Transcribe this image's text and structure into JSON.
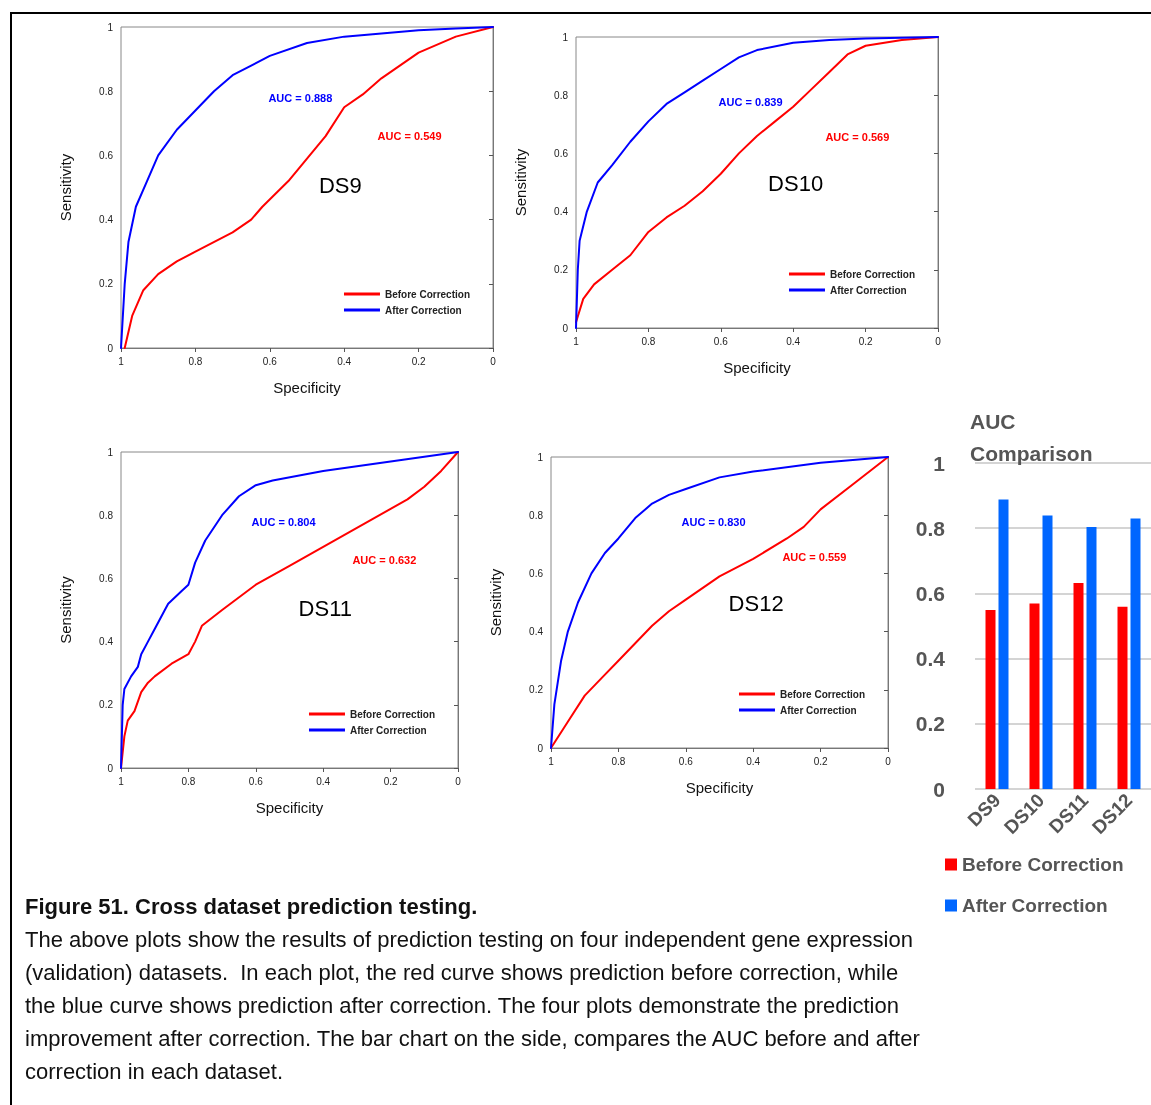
{
  "chart_data": [
    {
      "type": "line",
      "title": "DS9",
      "xlabel": "Specificity",
      "ylabel": "Sensitivity",
      "xlim": [
        1,
        0
      ],
      "ylim": [
        0,
        1
      ],
      "xticks": [
        1,
        0.8,
        0.6,
        0.4,
        0.2,
        0
      ],
      "yticks": [
        0,
        0.2,
        0.4,
        0.6,
        0.8,
        1
      ],
      "grid": false,
      "legend": "bottom right",
      "marker": "none",
      "line_style": "solid",
      "series": [
        {
          "name": "Before Correction",
          "color": "#ff0000",
          "x": [
            0.99,
            0.97,
            0.94,
            0.9,
            0.85,
            0.8,
            0.7,
            0.65,
            0.62,
            0.55,
            0.5,
            0.45,
            0.4,
            0.35,
            0.3,
            0.2,
            0.1,
            0
          ],
          "values": [
            0,
            0.1,
            0.18,
            0.23,
            0.27,
            0.3,
            0.36,
            0.4,
            0.44,
            0.52,
            0.59,
            0.66,
            0.75,
            0.79,
            0.84,
            0.92,
            0.97,
            1
          ]
        },
        {
          "name": "After Correction",
          "color": "#0000ff",
          "x": [
            1,
            0.99,
            0.98,
            0.96,
            0.93,
            0.9,
            0.85,
            0.8,
            0.75,
            0.7,
            0.65,
            0.6,
            0.5,
            0.4,
            0.3,
            0.2,
            0.1,
            0
          ],
          "values": [
            0,
            0.2,
            0.33,
            0.44,
            0.52,
            0.6,
            0.68,
            0.74,
            0.8,
            0.85,
            0.88,
            0.91,
            0.95,
            0.97,
            0.98,
            0.99,
            0.995,
            1
          ]
        }
      ],
      "annotations": [
        "AUC = 0.549",
        "AUC = 0.888"
      ]
    },
    {
      "type": "line",
      "title": "DS10",
      "xlabel": "Specificity",
      "ylabel": "Sensitivity",
      "xlim": [
        1,
        0
      ],
      "ylim": [
        0,
        1
      ],
      "xticks": [
        1,
        0.8,
        0.6,
        0.4,
        0.2,
        0
      ],
      "yticks": [
        0,
        0.2,
        0.4,
        0.6,
        0.8,
        1
      ],
      "grid": false,
      "legend": "bottom right",
      "marker": "none",
      "line_style": "solid",
      "series": [
        {
          "name": "Before Correction",
          "color": "#ff0000",
          "x": [
            1,
            0.98,
            0.95,
            0.9,
            0.85,
            0.8,
            0.75,
            0.7,
            0.65,
            0.6,
            0.55,
            0.5,
            0.45,
            0.4,
            0.35,
            0.3,
            0.25,
            0.2,
            0.1,
            0
          ],
          "values": [
            0.02,
            0.1,
            0.15,
            0.2,
            0.25,
            0.33,
            0.38,
            0.42,
            0.47,
            0.53,
            0.6,
            0.66,
            0.71,
            0.76,
            0.82,
            0.88,
            0.94,
            0.97,
            0.99,
            1
          ]
        },
        {
          "name": "After Correction",
          "color": "#0000ff",
          "x": [
            1,
            0.995,
            0.99,
            0.97,
            0.94,
            0.9,
            0.85,
            0.8,
            0.75,
            0.7,
            0.65,
            0.6,
            0.55,
            0.5,
            0.4,
            0.3,
            0.2,
            0
          ],
          "values": [
            0,
            0.2,
            0.3,
            0.4,
            0.5,
            0.56,
            0.64,
            0.71,
            0.77,
            0.81,
            0.85,
            0.89,
            0.93,
            0.955,
            0.98,
            0.99,
            0.995,
            1
          ]
        }
      ],
      "annotations": [
        "AUC = 0.569",
        "AUC = 0.839"
      ]
    },
    {
      "type": "line",
      "title": "DS11",
      "xlabel": "Specificity",
      "ylabel": "Sensitivity",
      "xlim": [
        1,
        0
      ],
      "ylim": [
        0,
        1
      ],
      "xticks": [
        1,
        0.8,
        0.6,
        0.4,
        0.2,
        0
      ],
      "yticks": [
        0,
        0.2,
        0.4,
        0.6,
        0.8,
        1
      ],
      "grid": false,
      "legend": "bottom right",
      "marker": "none",
      "line_style": "solid",
      "series": [
        {
          "name": "Before Correction",
          "color": "#ff0000",
          "x": [
            1,
            0.99,
            0.98,
            0.96,
            0.94,
            0.92,
            0.9,
            0.85,
            0.8,
            0.78,
            0.76,
            0.7,
            0.6,
            0.5,
            0.4,
            0.3,
            0.2,
            0.15,
            0.1,
            0.05,
            0
          ],
          "values": [
            0,
            0.1,
            0.15,
            0.18,
            0.24,
            0.27,
            0.29,
            0.33,
            0.36,
            0.4,
            0.45,
            0.5,
            0.58,
            0.64,
            0.7,
            0.76,
            0.82,
            0.85,
            0.89,
            0.94,
            1
          ]
        },
        {
          "name": "After Correction",
          "color": "#0000ff",
          "x": [
            1,
            0.995,
            0.99,
            0.97,
            0.95,
            0.94,
            0.92,
            0.9,
            0.87,
            0.86,
            0.82,
            0.8,
            0.78,
            0.75,
            0.7,
            0.65,
            0.6,
            0.55,
            0.4,
            0.2,
            0
          ],
          "values": [
            0,
            0.2,
            0.25,
            0.29,
            0.32,
            0.36,
            0.4,
            0.44,
            0.5,
            0.52,
            0.56,
            0.58,
            0.65,
            0.72,
            0.8,
            0.86,
            0.895,
            0.91,
            0.94,
            0.97,
            1
          ]
        }
      ],
      "annotations": [
        "AUC = 0.632",
        "AUC = 0.804"
      ]
    },
    {
      "type": "line",
      "title": "DS12",
      "xlabel": "Specificity",
      "ylabel": "Sensitivity",
      "xlim": [
        1,
        0
      ],
      "ylim": [
        0,
        1
      ],
      "xticks": [
        1,
        0.8,
        0.6,
        0.4,
        0.2,
        0
      ],
      "yticks": [
        0,
        0.2,
        0.4,
        0.6,
        0.8,
        1
      ],
      "grid": false,
      "legend": "bottom right",
      "marker": "none",
      "line_style": "solid",
      "series": [
        {
          "name": "Before Correction",
          "color": "#ff0000",
          "x": [
            1,
            0.95,
            0.9,
            0.85,
            0.8,
            0.75,
            0.7,
            0.65,
            0.6,
            0.5,
            0.4,
            0.3,
            0.25,
            0.2,
            0.1,
            0
          ],
          "values": [
            0,
            0.09,
            0.18,
            0.24,
            0.3,
            0.36,
            0.42,
            0.47,
            0.51,
            0.59,
            0.65,
            0.72,
            0.76,
            0.82,
            0.91,
            1
          ]
        },
        {
          "name": "After Correction",
          "color": "#0000ff",
          "x": [
            1,
            0.99,
            0.97,
            0.95,
            0.92,
            0.88,
            0.84,
            0.8,
            0.75,
            0.7,
            0.65,
            0.6,
            0.5,
            0.4,
            0.2,
            0
          ],
          "values": [
            0,
            0.15,
            0.3,
            0.4,
            0.5,
            0.6,
            0.67,
            0.72,
            0.79,
            0.84,
            0.87,
            0.89,
            0.93,
            0.95,
            0.98,
            1
          ]
        }
      ],
      "annotations": [
        "AUC = 0.559",
        "AUC = 0.830"
      ]
    },
    {
      "type": "bar",
      "title": "AUC Comparison",
      "categories": [
        "DS9",
        "DS10",
        "DS11",
        "DS12"
      ],
      "ylim": [
        0,
        1
      ],
      "yticks": [
        0,
        0.2,
        0.4,
        0.6,
        0.8,
        1
      ],
      "grid": "y",
      "legend": "bottom",
      "series": [
        {
          "name": "Before Correction",
          "color": "#ff0000",
          "values": [
            0.549,
            0.569,
            0.632,
            0.559
          ]
        },
        {
          "name": "After Correction",
          "color": "#0066ff",
          "values": [
            0.888,
            0.839,
            0.804,
            0.83
          ]
        }
      ]
    },
    {
      "type": "other",
      "title": "Figure 51. Cross dataset prediction testing.",
      "annotations": [
        "The above plots show the results of prediction testing on four independent gene expression (validation) datasets.  In each plot, the red curve shows prediction before correction, while the blue curve shows prediction after correction. The four plots demonstrate the prediction improvement after correction. The bar chart on the side, compares the AUC before and after correction in each dataset."
      ]
    }
  ]
}
